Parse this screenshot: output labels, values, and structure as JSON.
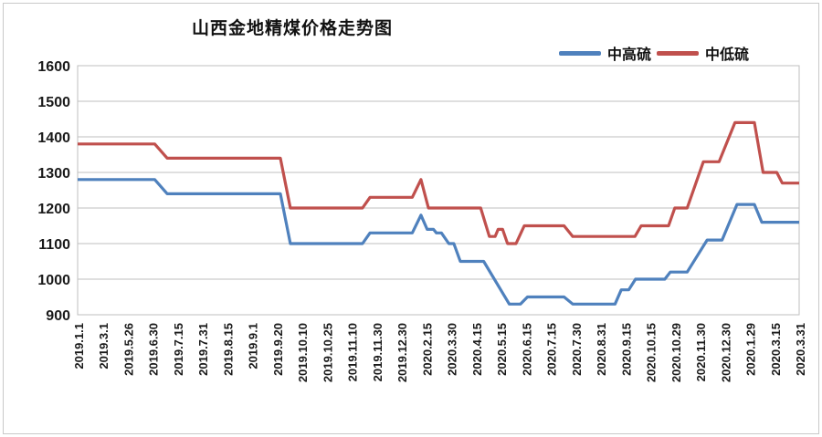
{
  "title": "山西金地精煤价格走势图",
  "legend": [
    {
      "name": "中高硫",
      "color": "#4f81bd"
    },
    {
      "name": "中低硫",
      "color": "#c0504d"
    }
  ],
  "colors": {
    "blue_series": "#4f81bd",
    "red_series": "#c0504d",
    "gridline": "#bfbfbf",
    "text": "#1a1a1a",
    "frame_border": "#c9c9c9"
  },
  "chart_data": {
    "type": "line",
    "title": "山西金地精煤价格走势图",
    "xlabel": "",
    "ylabel": "",
    "ylim": [
      900,
      1600
    ],
    "ytick_interval": 100,
    "yticks": [
      "1600",
      "1500",
      "1400",
      "1300",
      "1200",
      "1100",
      "1000",
      "900"
    ],
    "grid": true,
    "legend_position": "top-right",
    "xlabel_rotation": -90,
    "categories": [
      "2019.1.1",
      "2019.3.1",
      "2019.5.26",
      "2019.6.30",
      "2019.7.15",
      "2019.7.31",
      "2019.8.15",
      "2019.9.1",
      "2019.9.20",
      "2019.10.10",
      "2019.10.25",
      "2019.11.10",
      "2019.11.30",
      "2019.12.30",
      "2020.2.15",
      "2020.3.30",
      "2020.4.15",
      "2020.5.15",
      "2020.6.15",
      "2020.7.15",
      "2020.7.30",
      "2020.8.31",
      "2020.9.15",
      "2020.10.15",
      "2020.10.29",
      "2020.11.30",
      "2020.12.30",
      "2020.1.29",
      "2020.3.15",
      "2020.3.31"
    ],
    "series": [
      {
        "name": "中高硫",
        "color": "#4f81bd",
        "points": [
          [
            0,
            1280
          ],
          [
            3.1,
            1280
          ],
          [
            3.6,
            1240
          ],
          [
            8.15,
            1240
          ],
          [
            8.55,
            1100
          ],
          [
            11.45,
            1100
          ],
          [
            11.75,
            1130
          ],
          [
            13.45,
            1130
          ],
          [
            13.8,
            1180
          ],
          [
            14.05,
            1140
          ],
          [
            14.3,
            1140
          ],
          [
            14.42,
            1130
          ],
          [
            14.62,
            1130
          ],
          [
            14.92,
            1100
          ],
          [
            15.12,
            1100
          ],
          [
            15.38,
            1050
          ],
          [
            16.32,
            1050
          ],
          [
            17.35,
            930
          ],
          [
            17.8,
            930
          ],
          [
            18.08,
            950
          ],
          [
            19.55,
            950
          ],
          [
            19.9,
            930
          ],
          [
            21.6,
            930
          ],
          [
            21.85,
            970
          ],
          [
            22.15,
            970
          ],
          [
            22.42,
            1000
          ],
          [
            23.6,
            1000
          ],
          [
            23.82,
            1020
          ],
          [
            24.5,
            1020
          ],
          [
            25.3,
            1110
          ],
          [
            25.9,
            1110
          ],
          [
            26.5,
            1210
          ],
          [
            27.2,
            1210
          ],
          [
            27.5,
            1160
          ],
          [
            29,
            1160
          ]
        ]
      },
      {
        "name": "中低硫",
        "color": "#c0504d",
        "points": [
          [
            0,
            1380
          ],
          [
            3.1,
            1380
          ],
          [
            3.6,
            1340
          ],
          [
            8.15,
            1340
          ],
          [
            8.55,
            1200
          ],
          [
            11.45,
            1200
          ],
          [
            11.75,
            1230
          ],
          [
            13.45,
            1230
          ],
          [
            13.8,
            1280
          ],
          [
            14.1,
            1200
          ],
          [
            16.2,
            1200
          ],
          [
            16.55,
            1120
          ],
          [
            16.78,
            1120
          ],
          [
            16.9,
            1140
          ],
          [
            17.08,
            1140
          ],
          [
            17.28,
            1100
          ],
          [
            17.62,
            1100
          ],
          [
            17.95,
            1150
          ],
          [
            19.55,
            1150
          ],
          [
            19.9,
            1120
          ],
          [
            22.4,
            1120
          ],
          [
            22.65,
            1150
          ],
          [
            23.75,
            1150
          ],
          [
            24.0,
            1200
          ],
          [
            24.5,
            1200
          ],
          [
            25.15,
            1330
          ],
          [
            25.78,
            1330
          ],
          [
            26.42,
            1440
          ],
          [
            27.2,
            1440
          ],
          [
            27.55,
            1300
          ],
          [
            28.1,
            1300
          ],
          [
            28.32,
            1270
          ],
          [
            29,
            1270
          ]
        ]
      }
    ]
  }
}
